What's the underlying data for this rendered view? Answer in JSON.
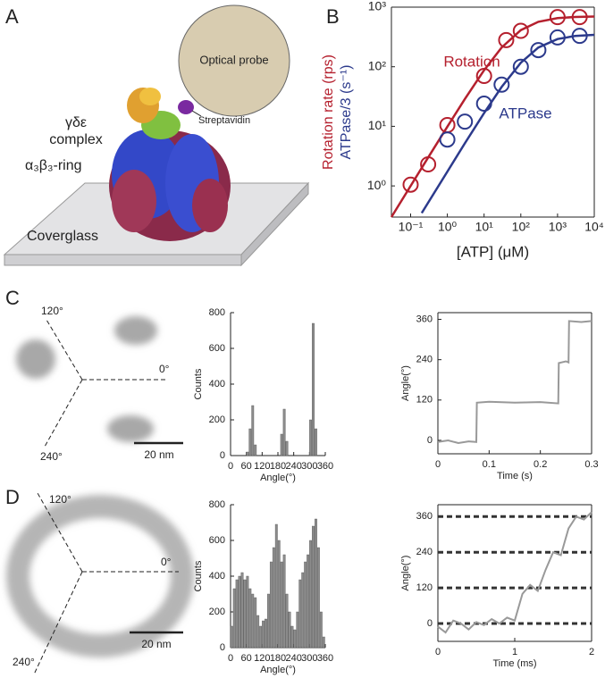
{
  "panel_labels": [
    "A",
    "B",
    "C",
    "D"
  ],
  "diagram": {
    "probe": "Optical probe",
    "complex": [
      "γδε",
      "complex"
    ],
    "streptavidin": "Streptavidin",
    "ring": "α₃β₃-ring",
    "glass": "Coverglass"
  },
  "scatter_c": {
    "labels": [
      "120°",
      "0°",
      "240°"
    ],
    "scale": "20 nm"
  },
  "scatter_d": {
    "labels": [
      "120°",
      "0°",
      "240°"
    ],
    "scale": "20 nm"
  },
  "chart_data": [
    {
      "type": "line",
      "log_x": true,
      "log_y": true,
      "x_label": "[ATP] (μM)",
      "y_label": [
        "Rotation rate (rps)",
        "ATPase/3 (s⁻¹)"
      ],
      "xlim": [
        0.03,
        10000
      ],
      "ylim": [
        0.3,
        1000
      ],
      "xticks": [
        {
          "value": 0.1,
          "label": "10⁻¹"
        },
        {
          "value": 1,
          "label": "10⁰"
        },
        {
          "value": 10,
          "label": "10¹"
        },
        {
          "value": 100,
          "label": "10²"
        },
        {
          "value": 1000,
          "label": "10³"
        },
        {
          "value": 10000,
          "label": "10⁴"
        }
      ],
      "yticks": [
        {
          "value": 1,
          "label": "10⁰"
        },
        {
          "value": 10,
          "label": "10¹"
        },
        {
          "value": 100,
          "label": "10²"
        },
        {
          "value": 1000,
          "label": "10³"
        }
      ],
      "series": [
        {
          "name": "Rotation",
          "color": "#b5202e",
          "x": [
            0.1,
            0.3,
            1,
            10,
            40,
            100,
            1000,
            4000
          ],
          "values": [
            1.05,
            2.3,
            10.5,
            70,
            280,
            400,
            680,
            680
          ],
          "fit_x": [
            0.03,
            0.1,
            0.3,
            1,
            3,
            10,
            30,
            100,
            300,
            1000,
            3000,
            10000
          ],
          "fit_values": [
            0.3,
            1.0,
            3.0,
            9.86,
            28.8,
            87.5,
            210,
            412,
            568,
            654,
            684,
            695
          ]
        },
        {
          "name": "ATPase",
          "color": "#2c3a8c",
          "x": [
            1,
            3,
            10,
            30,
            100,
            300,
            1000,
            4000
          ],
          "values": [
            6,
            12,
            24,
            50,
            100,
            190,
            310,
            330
          ],
          "fit_x": [
            0.2,
            1,
            3,
            10,
            30,
            100,
            300,
            1000,
            3000,
            10000
          ],
          "fit_values": [
            0.35,
            1.74,
            5.2,
            16.7,
            45.7,
            117,
            210,
            292,
            328,
            343
          ]
        }
      ]
    },
    {
      "type": "histogram",
      "x_label": "Angle(°)",
      "y_label": "Counts",
      "color": "#8c8c8c",
      "bins": [
        0,
        10,
        20,
        30,
        40,
        50,
        60,
        70,
        80,
        90,
        100,
        110,
        120,
        130,
        140,
        150,
        160,
        170,
        180,
        190,
        200,
        210,
        220,
        230,
        240,
        250,
        260,
        270,
        280,
        290,
        300,
        310,
        320,
        330,
        340,
        350,
        360
      ],
      "counts": [
        0,
        0,
        0,
        0,
        0,
        0,
        20,
        150,
        280,
        60,
        0,
        0,
        0,
        0,
        0,
        0,
        0,
        0,
        0,
        120,
        260,
        80,
        0,
        0,
        0,
        0,
        0,
        0,
        0,
        0,
        200,
        740,
        150,
        0,
        0,
        0
      ],
      "xlim": [
        0,
        360
      ],
      "ylim": [
        0,
        800
      ],
      "xticks": [
        0,
        60,
        120,
        180,
        240,
        300,
        360
      ],
      "yticks": [
        0,
        200,
        400,
        600,
        800
      ]
    },
    {
      "type": "line",
      "x_label": "Time (s)",
      "y_label": "Angle(°)",
      "color": "#999999",
      "x": [
        0,
        0.02,
        0.04,
        0.06,
        0.075,
        0.076,
        0.1,
        0.15,
        0.2,
        0.235,
        0.236,
        0.25,
        0.255,
        0.256,
        0.28,
        0.3
      ],
      "values": [
        -5,
        0,
        -8,
        -3,
        -5,
        112,
        115,
        112,
        114,
        110,
        230,
        235,
        232,
        355,
        352,
        355
      ],
      "xlim": [
        0,
        0.3
      ],
      "ylim": [
        -40,
        380
      ],
      "xticks": [
        0,
        0.1,
        0.2,
        0.3
      ],
      "yticks": [
        0,
        120,
        240,
        360
      ],
      "grid": false
    },
    {
      "type": "histogram",
      "x_label": "Angle(°)",
      "y_label": "Counts",
      "color": "#8c8c8c",
      "bins": [
        0,
        10,
        20,
        30,
        40,
        50,
        60,
        70,
        80,
        90,
        100,
        110,
        120,
        130,
        140,
        150,
        160,
        170,
        180,
        190,
        200,
        210,
        220,
        230,
        240,
        250,
        260,
        270,
        280,
        290,
        300,
        310,
        320,
        330,
        340,
        350,
        360
      ],
      "counts": [
        120,
        330,
        380,
        400,
        420,
        380,
        400,
        330,
        300,
        280,
        180,
        120,
        150,
        160,
        300,
        480,
        560,
        690,
        600,
        480,
        520,
        300,
        200,
        120,
        100,
        200,
        380,
        420,
        480,
        520,
        600,
        680,
        720,
        560,
        200,
        60
      ],
      "xlim": [
        0,
        360
      ],
      "ylim": [
        0,
        800
      ],
      "xticks": [
        0,
        60,
        120,
        180,
        240,
        300,
        360
      ],
      "yticks": [
        0,
        200,
        400,
        600,
        800
      ]
    },
    {
      "type": "line",
      "x_label": "Time (ms)",
      "y_label": "Angle(°)",
      "color": "#999999",
      "x": [
        0,
        0.1,
        0.2,
        0.3,
        0.4,
        0.5,
        0.6,
        0.7,
        0.8,
        0.9,
        1.0,
        1.1,
        1.2,
        1.3,
        1.4,
        1.5,
        1.6,
        1.7,
        1.8,
        1.9,
        2.0
      ],
      "values": [
        -10,
        -30,
        10,
        0,
        -20,
        5,
        -5,
        15,
        0,
        20,
        10,
        100,
        130,
        110,
        180,
        240,
        230,
        320,
        360,
        350,
        375
      ],
      "xlim": [
        0,
        2
      ],
      "ylim": [
        -60,
        400
      ],
      "xticks": [
        0,
        1,
        2
      ],
      "yticks": [
        0,
        120,
        240,
        360
      ],
      "grid": true
    }
  ]
}
